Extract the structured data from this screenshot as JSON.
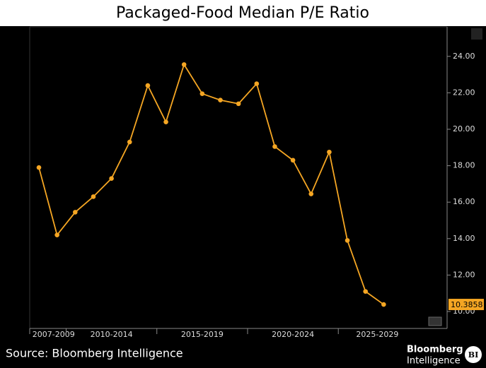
{
  "chart_data": {
    "type": "line",
    "title": "Packaged-Food Median P/E Ratio",
    "source": "Source: Bloomberg Intelligence",
    "brand": [
      "Bloomberg",
      "Intelligence"
    ],
    "brand_badge": "BI",
    "category_groups": [
      {
        "label": "2007-2009",
        "count": 2
      },
      {
        "label": "2010-2014",
        "count": 5
      },
      {
        "label": "2015-2019",
        "count": 5
      },
      {
        "label": "2020-2024",
        "count": 5
      },
      {
        "label": "2025-2029",
        "count": 3
      }
    ],
    "series": [
      {
        "color": "#f5a623",
        "values": [
          17.9,
          14.2,
          15.45,
          16.3,
          17.3,
          19.3,
          22.4,
          20.4,
          23.55,
          21.95,
          21.6,
          21.4,
          22.5,
          19.05,
          18.3,
          16.45,
          18.75,
          13.9,
          11.1,
          10.3858
        ]
      }
    ],
    "ylim": [
      9.07,
      25.62
    ],
    "yticks": [
      {
        "value": 10,
        "label": "10.00"
      },
      {
        "value": 12,
        "label": "12.00"
      },
      {
        "value": 14,
        "label": "14.00"
      },
      {
        "value": 16,
        "label": "16.00"
      },
      {
        "value": 18,
        "label": "18.00"
      },
      {
        "value": 20,
        "label": "20.00"
      },
      {
        "value": 22,
        "label": "22.00"
      },
      {
        "value": 24,
        "label": "24.00"
      }
    ],
    "y_axis_side": "right"
  }
}
